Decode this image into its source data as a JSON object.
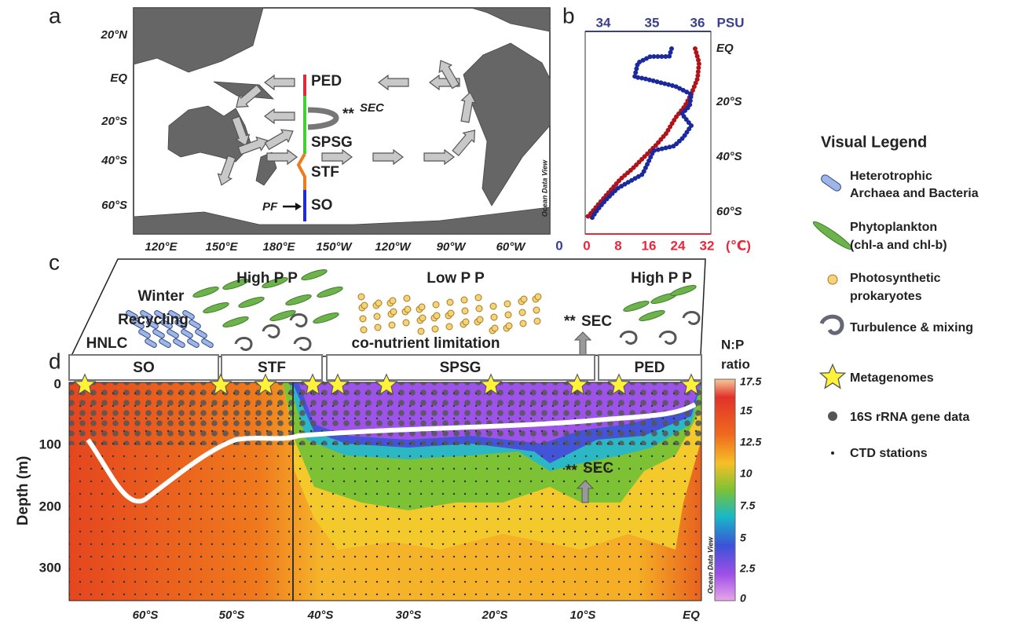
{
  "panel_a": {
    "label": "a",
    "lat_labels": [
      "20°N",
      "EQ",
      "20°S",
      "40°S",
      "60°S"
    ],
    "lon_labels": [
      "120°E",
      "150°E",
      "180°E",
      "150°W",
      "120°W",
      "90°W",
      "60°W"
    ],
    "regions": [
      "PED",
      "SPSG",
      "STF",
      "SO"
    ],
    "sec_marker": "**",
    "sec": "SEC",
    "pf": "PF",
    "credit": "Ocean Data View"
  },
  "panel_b": {
    "label": "b",
    "psu_ticks": [
      34,
      35,
      36
    ],
    "psu_unit": "PSU",
    "lat_labels": [
      "EQ",
      "20°S",
      "40°S",
      "60°S"
    ],
    "salinity_zero": 0,
    "temp_ticks": [
      0,
      8,
      16,
      24,
      32
    ],
    "temp_unit": "(℃)"
  },
  "panel_c": {
    "label": "c",
    "winter": "Winter",
    "recycling": "Recycling",
    "hnlc": "HNLC",
    "high_pp": "High P P",
    "low_pp": "Low P P",
    "colimitation": "co-nutrient limitation",
    "sec_marker": "**",
    "sec": "SEC",
    "high_pp_ped": "High P P",
    "regions": [
      "SO",
      "STF",
      "SPSG",
      "PED"
    ],
    "ratio_title": [
      "N:P",
      "ratio"
    ]
  },
  "panel_d": {
    "label": "d",
    "y_title": "Depth (m)",
    "depth_ticks": [
      0,
      100,
      200,
      300
    ],
    "lat_labels": [
      "60°S",
      "50°S",
      "40°S",
      "30°S",
      "20°S",
      "10°S",
      "EQ"
    ],
    "colorbar_ticks": [
      17.5,
      15,
      12.5,
      10,
      7.5,
      5,
      2.5,
      0
    ],
    "sec_marker": "**",
    "sec": "SEC",
    "credit": "Ocean Data View"
  },
  "legend": {
    "title": "Visual Legend",
    "items": [
      [
        "Heterotrophic",
        "Archaea  and Bacteria"
      ],
      [
        "Phytoplankton",
        "(chl-a and chl-b)"
      ],
      [
        "Photosynthetic",
        "prokaryotes"
      ],
      [
        "Turbulence & mixing"
      ],
      [
        "Metagenomes"
      ],
      [
        "16S rRNA gene data"
      ],
      [
        "CTD stations"
      ]
    ]
  }
}
